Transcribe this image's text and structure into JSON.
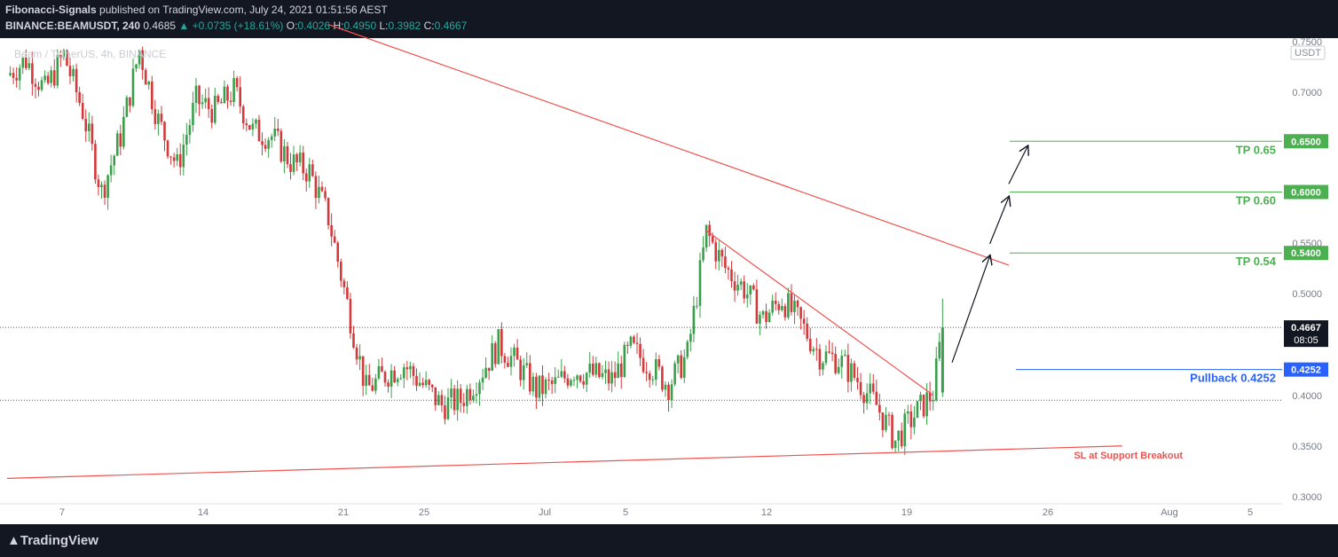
{
  "header": {
    "publisher": "Fibonacci-Signals",
    "published_text": "published on TradingView.com, July 24, 2021 01:51:56 AEST",
    "symbol": "BINANCE:BEAMUSDT, 240",
    "last": "0.4685",
    "change": "▲ +0.0735 (+18.61%)",
    "o_label": "O:",
    "o": "0.4026",
    "h_label": "H:",
    "h": "0.4950",
    "l_label": "L:",
    "l": "0.3982",
    "c_label": "C:",
    "c": "0.4667"
  },
  "footer": {
    "brand": "TradingView"
  },
  "chart_data": {
    "type": "candlestick",
    "watermark": "Beam / TetherUS, 4h, BINANCE",
    "currency": "USDT",
    "y_ticks": [
      "0.7500",
      "0.7000",
      "0.5500",
      "0.5000",
      "0.4000",
      "0.3500",
      "0.3000"
    ],
    "y_range": [
      0.3,
      0.75
    ],
    "x_ticks": [
      "7",
      "14",
      "21",
      "25",
      "Jul",
      "5",
      "12",
      "19",
      "26",
      "Aug",
      "5"
    ],
    "x_range_days": [
      "2021-06-04",
      "2021-08-06"
    ],
    "price_labels": [
      {
        "text": "0.6500",
        "value": 0.65
      },
      {
        "text": "0.6000",
        "value": 0.6
      },
      {
        "text": "0.5400",
        "value": 0.54
      },
      {
        "text": "0.4252",
        "value": 0.4252,
        "kind": "blue"
      }
    ],
    "last_price": {
      "text": "0.4667",
      "countdown": "08:05",
      "value": 0.4667
    },
    "annotations": [
      {
        "text": "TP 0.65",
        "value": 0.65
      },
      {
        "text": "TP 0.60",
        "value": 0.6
      },
      {
        "text": "TP 0.54",
        "value": 0.54
      },
      {
        "text": "Pullback 0.4252",
        "value": 0.4252
      },
      {
        "text": "SL at Support Breakout",
        "value": 0.35
      }
    ],
    "dotted_levels": [
      0.4667,
      0.395
    ],
    "trendlines": [
      {
        "name": "long-resistance",
        "from": [
          "2021-06-21",
          0.765
        ],
        "to": [
          "2021-07-27",
          0.528
        ]
      },
      {
        "name": "short-resistance",
        "from": [
          "2021-07-11",
          0.562
        ],
        "to": [
          "2021-07-23",
          0.4
        ]
      },
      {
        "name": "support",
        "from": [
          "2021-06-04",
          0.318
        ],
        "to": [
          "2021-08-02",
          0.35
        ]
      }
    ],
    "arrows": [
      {
        "from": [
          "2021-07-24",
          0.432
        ],
        "to": [
          "2021-07-26",
          0.537
        ]
      },
      {
        "from": [
          "2021-07-26",
          0.549
        ],
        "to": [
          "2021-07-27",
          0.595
        ]
      },
      {
        "from": [
          "2021-07-27",
          0.608
        ],
        "to": [
          "2021-07-28",
          0.645
        ]
      }
    ],
    "price_path": [
      [
        "2021-06-04",
        0.715
      ],
      [
        "2021-06-05",
        0.73
      ],
      [
        "2021-06-06",
        0.7
      ],
      [
        "2021-06-07",
        0.735
      ],
      [
        "2021-06-08",
        0.68
      ],
      [
        "2021-06-09",
        0.6
      ],
      [
        "2021-06-10",
        0.655
      ],
      [
        "2021-06-11",
        0.74
      ],
      [
        "2021-06-12",
        0.67
      ],
      [
        "2021-06-13",
        0.625
      ],
      [
        "2021-06-14",
        0.69
      ],
      [
        "2021-06-15",
        0.68
      ],
      [
        "2021-06-16",
        0.7
      ],
      [
        "2021-06-17",
        0.66
      ],
      [
        "2021-06-18",
        0.655
      ],
      [
        "2021-06-19",
        0.63
      ],
      [
        "2021-06-20",
        0.62
      ],
      [
        "2021-06-21",
        0.575
      ],
      [
        "2021-06-22",
        0.49
      ],
      [
        "2021-06-23",
        0.405
      ],
      [
        "2021-06-24",
        0.42
      ],
      [
        "2021-06-25",
        0.43
      ],
      [
        "2021-06-26",
        0.41
      ],
      [
        "2021-06-27",
        0.39
      ],
      [
        "2021-06-28",
        0.395
      ],
      [
        "2021-06-29",
        0.42
      ],
      [
        "2021-06-30",
        0.45
      ],
      [
        "2021-07-01",
        0.43
      ],
      [
        "2021-07-02",
        0.405
      ],
      [
        "2021-07-03",
        0.41
      ],
      [
        "2021-07-04",
        0.425
      ],
      [
        "2021-07-05",
        0.42
      ],
      [
        "2021-07-06",
        0.415
      ],
      [
        "2021-07-07",
        0.445
      ],
      [
        "2021-07-08",
        0.43
      ],
      [
        "2021-07-09",
        0.41
      ],
      [
        "2021-07-10",
        0.44
      ],
      [
        "2021-07-11",
        0.56
      ],
      [
        "2021-07-12",
        0.525
      ],
      [
        "2021-07-13",
        0.505
      ],
      [
        "2021-07-14",
        0.475
      ],
      [
        "2021-07-15",
        0.495
      ],
      [
        "2021-07-16",
        0.47
      ],
      [
        "2021-07-17",
        0.44
      ],
      [
        "2021-07-18",
        0.435
      ],
      [
        "2021-07-19",
        0.415
      ],
      [
        "2021-07-20",
        0.39
      ],
      [
        "2021-07-21",
        0.355
      ],
      [
        "2021-07-22",
        0.38
      ],
      [
        "2021-07-23",
        0.402
      ],
      [
        "2021-07-23T12",
        0.4667
      ]
    ]
  }
}
